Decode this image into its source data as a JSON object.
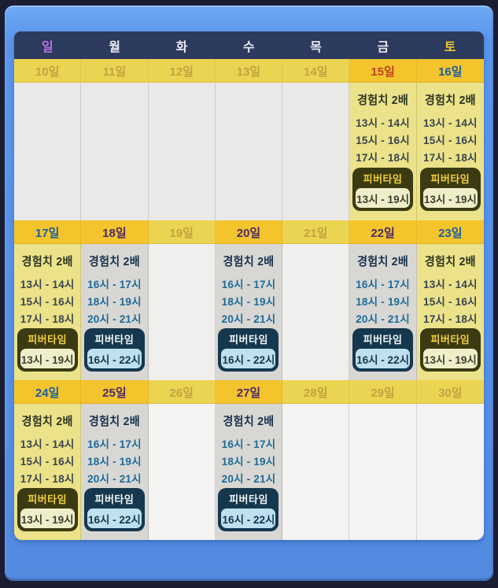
{
  "colors": {
    "frame_border": "#1b1e33",
    "panel_blue": "#5590e8",
    "header_navy": "#2c3a5d",
    "sunday_header": "#b673e3",
    "saturday_header": "#f2ca33",
    "event_date_strip": "#f4c42d",
    "idle_date_strip": "#ecd453",
    "holiday_date_text": "#bf431f",
    "weekend_date_text": "#1b5fa0",
    "weekday_date_text": "#4c2b66",
    "idle_date_text": "#c2a440",
    "weekend_cell": "#ebe289",
    "weekday_cell": "#d8d7d4",
    "fever_weekend_bg": "#3b3a10",
    "fever_weekday_bg": "#16384f"
  },
  "header": {
    "days": [
      {
        "label": "일"
      },
      {
        "label": "월"
      },
      {
        "label": "화"
      },
      {
        "label": "수"
      },
      {
        "label": "목"
      },
      {
        "label": "금"
      },
      {
        "label": "토"
      }
    ]
  },
  "weeks": [
    {
      "days": [
        {
          "date": "10일"
        },
        {
          "date": "11일"
        },
        {
          "date": "12일"
        },
        {
          "date": "13일"
        },
        {
          "date": "14일"
        },
        {
          "date": "15일",
          "exp_title": "경험치 2배",
          "times": [
            "13시 - 14시",
            "15시 - 16시",
            "17시 - 18시"
          ],
          "fever_label": "피버타임",
          "fever_time": "13시 - 19시"
        },
        {
          "date": "16일",
          "exp_title": "경험치 2배",
          "times": [
            "13시 - 14시",
            "15시 - 16시",
            "17시 - 18시"
          ],
          "fever_label": "피버타임",
          "fever_time": "13시 - 19시"
        }
      ]
    },
    {
      "days": [
        {
          "date": "17일",
          "exp_title": "경험치 2배",
          "times": [
            "13시 - 14시",
            "15시 - 16시",
            "17시 - 18시"
          ],
          "fever_label": "피버타임",
          "fever_time": "13시 - 19시"
        },
        {
          "date": "18일",
          "exp_title": "경험치 2배",
          "times": [
            "16시 - 17시",
            "18시 - 19시",
            "20시 - 21시"
          ],
          "fever_label": "피버타임",
          "fever_time": "16시 - 22시"
        },
        {
          "date": "19일"
        },
        {
          "date": "20일",
          "exp_title": "경험치 2배",
          "times": [
            "16시 - 17시",
            "18시 - 19시",
            "20시 - 21시"
          ],
          "fever_label": "피버타임",
          "fever_time": "16시 - 22시"
        },
        {
          "date": "21일"
        },
        {
          "date": "22일",
          "exp_title": "경험치 2배",
          "times": [
            "16시 - 17시",
            "18시 - 19시",
            "20시 - 21시"
          ],
          "fever_label": "피버타임",
          "fever_time": "16시 - 22시"
        },
        {
          "date": "23일",
          "exp_title": "경험치 2배",
          "times": [
            "13시 - 14시",
            "15시 - 16시",
            "17시 - 18시"
          ],
          "fever_label": "피버타임",
          "fever_time": "13시 - 19시"
        }
      ]
    },
    {
      "days": [
        {
          "date": "24일",
          "exp_title": "경험치 2배",
          "times": [
            "13시 - 14시",
            "15시 - 16시",
            "17시 - 18시"
          ],
          "fever_label": "피버타임",
          "fever_time": "13시 - 19시"
        },
        {
          "date": "25일",
          "exp_title": "경험치 2배",
          "times": [
            "16시 - 17시",
            "18시 - 19시",
            "20시 - 21시"
          ],
          "fever_label": "피버타임",
          "fever_time": "16시 - 22시"
        },
        {
          "date": "26일"
        },
        {
          "date": "27일",
          "exp_title": "경험치 2배",
          "times": [
            "16시 - 17시",
            "18시 - 19시",
            "20시 - 21시"
          ],
          "fever_label": "피버타임",
          "fever_time": "16시 - 22시"
        },
        {
          "date": "28일"
        },
        {
          "date": "29일"
        },
        {
          "date": "30일"
        }
      ]
    }
  ]
}
